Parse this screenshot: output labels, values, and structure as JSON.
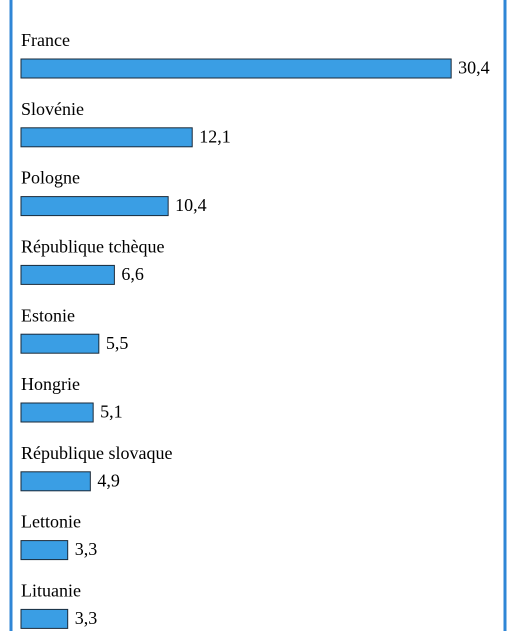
{
  "chart_data": {
    "type": "bar",
    "orientation": "horizontal",
    "color": "#3a9ee4",
    "categories": [
      "France",
      "Slovénie",
      "Pologne",
      "République tchèque",
      "Estonie",
      "Hongrie",
      "République slovaque",
      "Lettonie",
      "Lituanie"
    ],
    "values": [
      30.4,
      12.1,
      10.4,
      6.6,
      5.5,
      5.1,
      4.9,
      3.3,
      3.3
    ],
    "value_labels": [
      "30,4",
      "12,1",
      "10,4",
      "6,6",
      "5,5",
      "5,1",
      "4,9",
      "3,3",
      "3,3"
    ]
  }
}
